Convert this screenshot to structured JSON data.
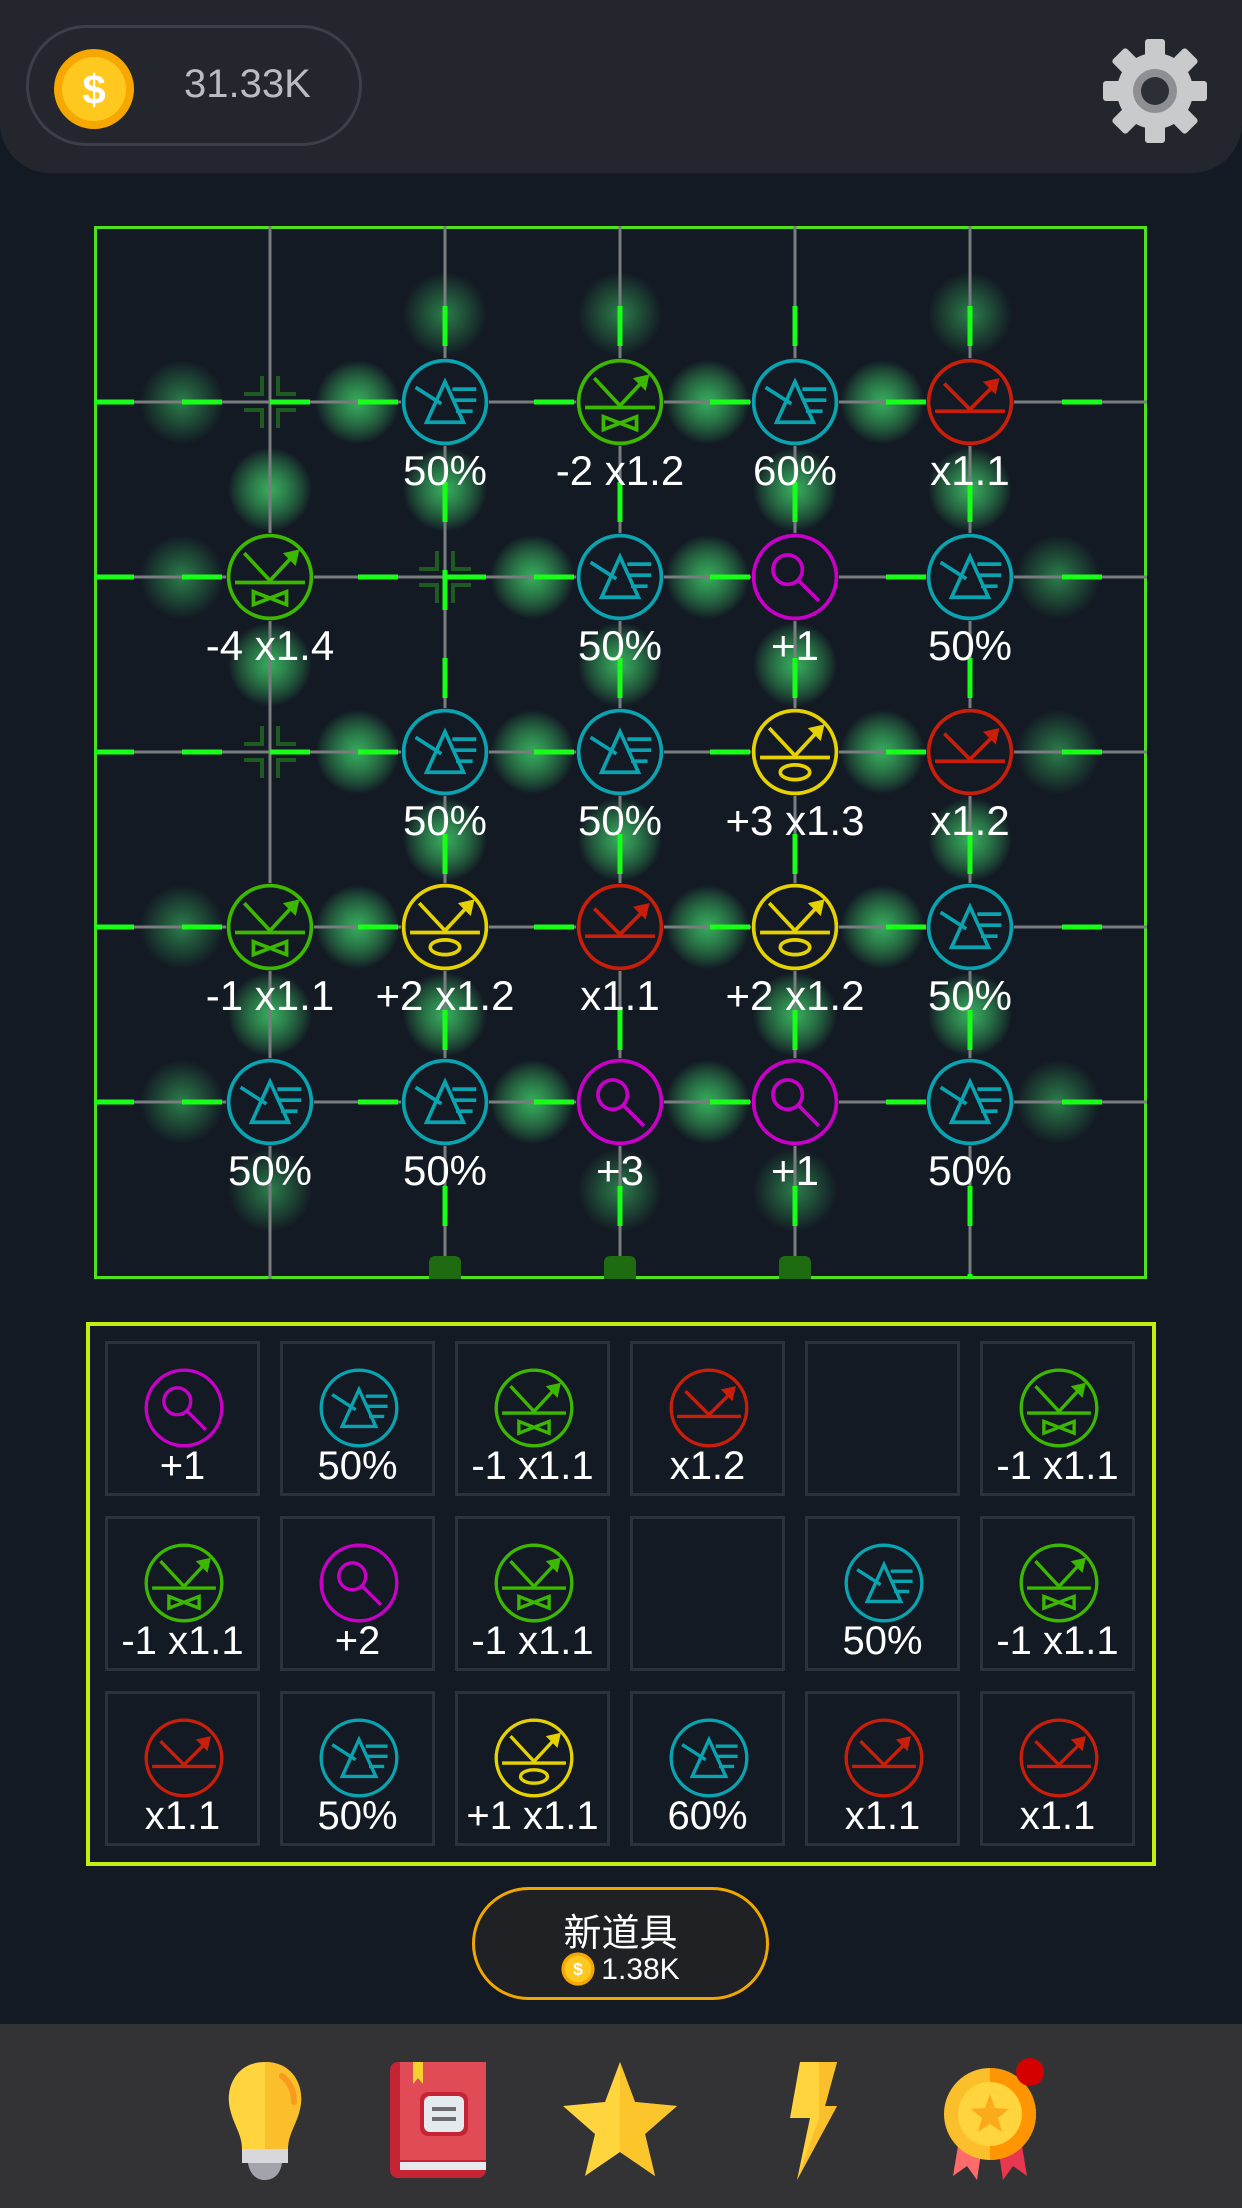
{
  "header": {
    "coins": "31.33K",
    "coin_icon": "dollar-coin-icon",
    "settings_icon": "gear-icon"
  },
  "colors": {
    "prism": "#0aa3b0",
    "splitter": "#3cb800",
    "mirror": "#c81e0a",
    "lens": "#e6d200",
    "magnifier": "#c800c8",
    "laser": "#18ff18",
    "board_border": "#4ee21e",
    "inventory_border": "#c3ee10",
    "button_border": "#f0a800"
  },
  "board": {
    "rows": [
      [
        null,
        {
          "type": "prism",
          "label": "50%"
        },
        {
          "type": "splitter",
          "label": "-2 x1.2"
        },
        {
          "type": "prism",
          "label": "60%"
        },
        {
          "type": "mirror",
          "label": "x1.1"
        }
      ],
      [
        {
          "type": "splitter",
          "label": "-4 x1.4"
        },
        null,
        {
          "type": "prism",
          "label": "50%"
        },
        {
          "type": "magnifier",
          "label": "+1"
        },
        {
          "type": "prism",
          "label": "50%"
        }
      ],
      [
        null,
        {
          "type": "prism",
          "label": "50%"
        },
        {
          "type": "prism",
          "label": "50%"
        },
        {
          "type": "lens",
          "label": "+3 x1.3"
        },
        {
          "type": "mirror",
          "label": "x1.2"
        }
      ],
      [
        {
          "type": "splitter",
          "label": "-1 x1.1"
        },
        {
          "type": "lens",
          "label": "+2 x1.2"
        },
        {
          "type": "mirror",
          "label": "x1.1"
        },
        {
          "type": "lens",
          "label": "+2 x1.2"
        },
        {
          "type": "prism",
          "label": "50%"
        }
      ],
      [
        {
          "type": "prism",
          "label": "50%"
        },
        {
          "type": "prism",
          "label": "50%"
        },
        {
          "type": "magnifier",
          "label": "+3"
        },
        {
          "type": "magnifier",
          "label": "+1"
        },
        {
          "type": "prism",
          "label": "50%"
        }
      ]
    ]
  },
  "inventory": {
    "rows": [
      [
        {
          "type": "magnifier",
          "label": "+1"
        },
        {
          "type": "prism",
          "label": "50%"
        },
        {
          "type": "splitter",
          "label": "-1 x1.1"
        },
        {
          "type": "mirror",
          "label": "x1.2"
        },
        null,
        {
          "type": "splitter",
          "label": "-1 x1.1"
        }
      ],
      [
        {
          "type": "splitter",
          "label": "-1 x1.1"
        },
        {
          "type": "magnifier",
          "label": "+2"
        },
        {
          "type": "splitter",
          "label": "-1 x1.1"
        },
        null,
        {
          "type": "prism",
          "label": "50%"
        },
        {
          "type": "splitter",
          "label": "-1 x1.1"
        }
      ],
      [
        {
          "type": "mirror",
          "label": "x1.1"
        },
        {
          "type": "prism",
          "label": "50%"
        },
        {
          "type": "lens",
          "label": "+1 x1.1"
        },
        {
          "type": "prism",
          "label": "60%"
        },
        {
          "type": "mirror",
          "label": "x1.1"
        },
        {
          "type": "mirror",
          "label": "x1.1"
        }
      ]
    ]
  },
  "new_item": {
    "title": "新道具",
    "cost": "1.38K"
  },
  "bottom_nav": [
    {
      "id": "hint",
      "icon": "lightbulb-icon"
    },
    {
      "id": "book",
      "icon": "book-icon"
    },
    {
      "id": "star",
      "icon": "star-icon"
    },
    {
      "id": "boost",
      "icon": "lightning-icon"
    },
    {
      "id": "achievements",
      "icon": "medal-icon",
      "badge": true
    }
  ]
}
